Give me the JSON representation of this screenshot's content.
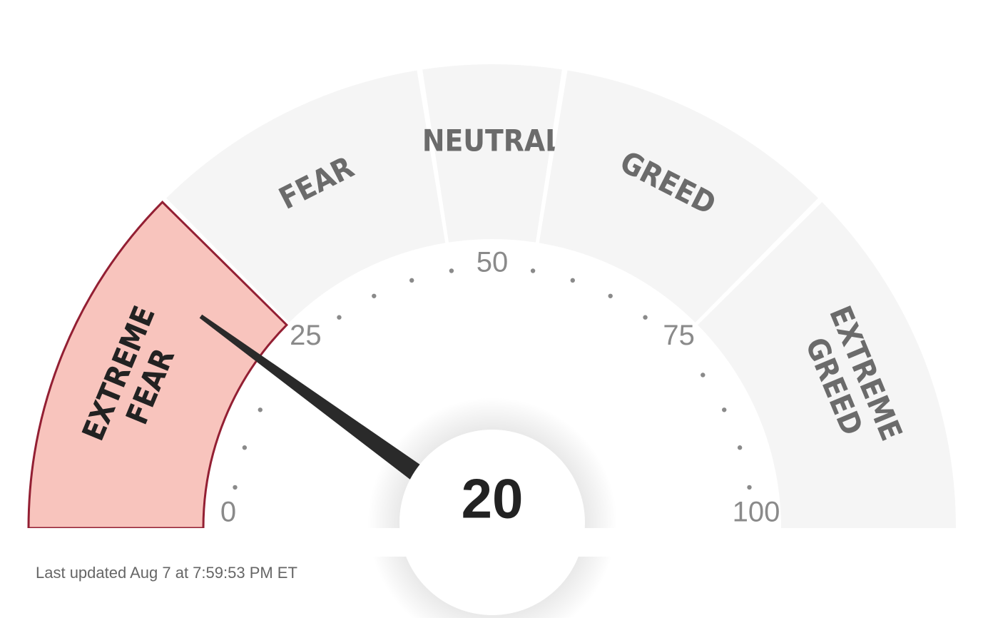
{
  "chart_data": {
    "type": "gauge",
    "value": 20,
    "range": [
      0,
      100
    ],
    "ticks": [
      0,
      25,
      50,
      75,
      100
    ],
    "minor_ticks": [
      5,
      10,
      15,
      20,
      30,
      35,
      40,
      45,
      55,
      60,
      65,
      70,
      80,
      85,
      90,
      95
    ],
    "segments": [
      {
        "label": [
          "EXTREME",
          "FEAR"
        ],
        "range": [
          0,
          25
        ]
      },
      {
        "label": [
          "FEAR"
        ],
        "range": [
          25,
          45
        ]
      },
      {
        "label": [
          "NEUTRAL"
        ],
        "range": [
          45,
          55
        ]
      },
      {
        "label": [
          "GREED"
        ],
        "range": [
          55,
          75
        ]
      },
      {
        "label": [
          "EXTREME",
          "GREED"
        ],
        "range": [
          75,
          100
        ]
      }
    ],
    "colors": {
      "segment": "#f5f5f5",
      "active": "#f8c4bd",
      "active_stroke": "#931f33",
      "needle": "#2a2a2a"
    },
    "footnote": "Last updated Aug 7 at 7:59:53 PM ET"
  }
}
